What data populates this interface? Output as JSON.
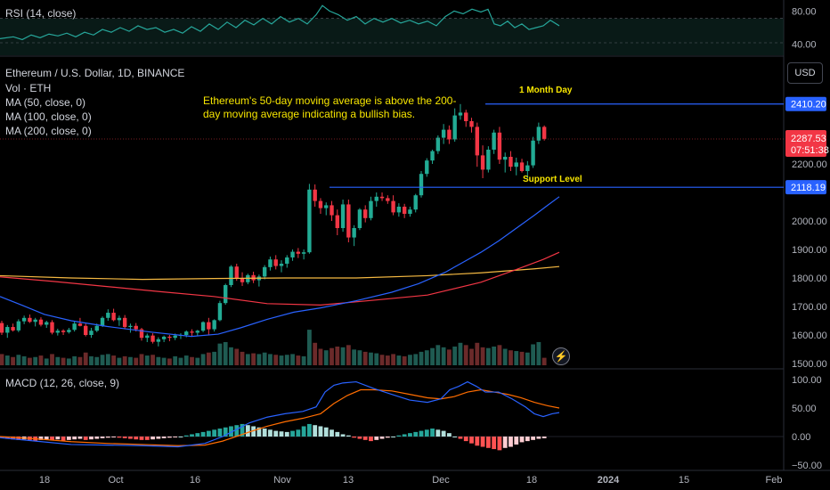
{
  "colors": {
    "background": "#000000",
    "up": "#26a69a",
    "up_candle": "#22ab94",
    "down_candle": "#f23645",
    "up_volume": "#1f5b52",
    "down_volume": "#6b2a2a",
    "rsi": "#26a69a",
    "ma50": "#2962ff",
    "ma100": "#f23645",
    "ma200": "#f5b942",
    "macd": "#2962ff",
    "signal": "#ff6d00",
    "hline": "#2962ff",
    "annotation": "#f7e600"
  },
  "header": {
    "rsi_label": "RSI (14, close)",
    "symbol": "Ethereum / U.S. Dollar, 1D, BINANCE",
    "vol_label": "Vol · ETH",
    "ma50_label": "MA (50, close, 0)",
    "ma100_label": "MA (100, close, 0)",
    "ma200_label": "MA (200, close, 0)",
    "macd_label": "MACD (12, 26, close, 9)",
    "currency": "USD"
  },
  "annotations": {
    "note": "Ethereum's 50-day moving average is above the 200-day moving average indicating a bullish bias.",
    "month_day": "1 Month Day",
    "support": "Support Level"
  },
  "price_tags": {
    "resistance": "2410.20",
    "support": "2118.19",
    "last_price": "2287.53",
    "countdown": "07:51:38"
  },
  "chart_data": {
    "type": "candlestick",
    "x_ticks": [
      "18",
      "Oct",
      "16",
      "Nov",
      "13",
      "Dec",
      "18",
      "2024",
      "15",
      "Feb"
    ],
    "price_axis": {
      "ticks": [
        1500,
        1600,
        1700,
        1800,
        1900,
        2000,
        2200
      ],
      "range": [
        1500,
        2560
      ]
    },
    "rsi_axis": {
      "ticks": [
        40,
        80
      ],
      "range": [
        30,
        90
      ]
    },
    "macd_axis": {
      "ticks": [
        "100.00",
        "50.00",
        "0.00",
        "−50.00"
      ],
      "range": [
        -50,
        110
      ]
    },
    "hlines": [
      2410.2,
      2118.19
    ],
    "candles": [
      [
        1642,
        1650,
        1600,
        1608
      ],
      [
        1608,
        1635,
        1590,
        1628
      ],
      [
        1628,
        1640,
        1612,
        1616
      ],
      [
        1616,
        1655,
        1610,
        1648
      ],
      [
        1648,
        1668,
        1638,
        1660
      ],
      [
        1660,
        1672,
        1642,
        1646
      ],
      [
        1646,
        1660,
        1630,
        1654
      ],
      [
        1654,
        1662,
        1630,
        1636
      ],
      [
        1636,
        1650,
        1625,
        1645
      ],
      [
        1645,
        1652,
        1602,
        1608
      ],
      [
        1608,
        1622,
        1598,
        1615
      ],
      [
        1615,
        1620,
        1600,
        1610
      ],
      [
        1610,
        1625,
        1605,
        1618
      ],
      [
        1618,
        1648,
        1612,
        1640
      ],
      [
        1640,
        1660,
        1630,
        1632
      ],
      [
        1632,
        1640,
        1595,
        1600
      ],
      [
        1600,
        1625,
        1590,
        1615
      ],
      [
        1615,
        1640,
        1610,
        1632
      ],
      [
        1632,
        1665,
        1628,
        1660
      ],
      [
        1660,
        1690,
        1650,
        1678
      ],
      [
        1678,
        1692,
        1648,
        1652
      ],
      [
        1652,
        1668,
        1632,
        1660
      ],
      [
        1660,
        1670,
        1620,
        1628
      ],
      [
        1628,
        1640,
        1608,
        1632
      ],
      [
        1632,
        1642,
        1612,
        1620
      ],
      [
        1620,
        1625,
        1580,
        1590
      ],
      [
        1590,
        1605,
        1575,
        1598
      ],
      [
        1598,
        1606,
        1570,
        1576
      ],
      [
        1576,
        1592,
        1560,
        1585
      ],
      [
        1585,
        1598,
        1575,
        1594
      ],
      [
        1594,
        1600,
        1578,
        1590
      ],
      [
        1590,
        1605,
        1582,
        1598
      ],
      [
        1598,
        1606,
        1586,
        1600
      ],
      [
        1600,
        1616,
        1592,
        1612
      ],
      [
        1612,
        1620,
        1595,
        1608
      ],
      [
        1608,
        1618,
        1598,
        1615
      ],
      [
        1615,
        1648,
        1610,
        1645
      ],
      [
        1645,
        1660,
        1600,
        1620
      ],
      [
        1620,
        1655,
        1612,
        1652
      ],
      [
        1652,
        1720,
        1648,
        1712
      ],
      [
        1712,
        1780,
        1706,
        1775
      ],
      [
        1775,
        1845,
        1768,
        1840
      ],
      [
        1840,
        1850,
        1790,
        1800
      ],
      [
        1800,
        1820,
        1772,
        1785
      ],
      [
        1785,
        1815,
        1778,
        1810
      ],
      [
        1810,
        1822,
        1782,
        1792
      ],
      [
        1792,
        1812,
        1770,
        1805
      ],
      [
        1805,
        1845,
        1795,
        1838
      ],
      [
        1838,
        1875,
        1826,
        1865
      ],
      [
        1865,
        1880,
        1830,
        1842
      ],
      [
        1842,
        1862,
        1820,
        1850
      ],
      [
        1850,
        1880,
        1836,
        1872
      ],
      [
        1872,
        1900,
        1860,
        1892
      ],
      [
        1892,
        1905,
        1870,
        1885
      ],
      [
        1885,
        1900,
        1865,
        1890
      ],
      [
        1890,
        2130,
        1885,
        2110
      ],
      [
        2110,
        2128,
        2050,
        2070
      ],
      [
        2070,
        2080,
        2025,
        2045
      ],
      [
        2045,
        2065,
        2020,
        2055
      ],
      [
        2055,
        2070,
        2000,
        2020
      ],
      [
        2020,
        2040,
        1950,
        1975
      ],
      [
        1975,
        2075,
        1962,
        2058
      ],
      [
        2058,
        2075,
        1925,
        1942
      ],
      [
        1942,
        1985,
        1912,
        1975
      ],
      [
        1975,
        2045,
        1968,
        2040
      ],
      [
        2040,
        2055,
        1995,
        2010
      ],
      [
        2010,
        2085,
        2002,
        2070
      ],
      [
        2070,
        2100,
        2050,
        2085
      ],
      [
        2085,
        2100,
        2070,
        2080
      ],
      [
        2080,
        2090,
        2060,
        2070
      ],
      [
        2070,
        2090,
        2020,
        2030
      ],
      [
        2030,
        2062,
        2015,
        2050
      ],
      [
        2050,
        2060,
        2010,
        2025
      ],
      [
        2025,
        2050,
        2015,
        2040
      ],
      [
        2040,
        2095,
        2030,
        2090
      ],
      [
        2090,
        2175,
        2082,
        2165
      ],
      [
        2165,
        2220,
        2155,
        2212
      ],
      [
        2212,
        2250,
        2200,
        2245
      ],
      [
        2245,
        2300,
        2235,
        2292
      ],
      [
        2292,
        2340,
        2270,
        2320
      ],
      [
        2320,
        2335,
        2270,
        2286
      ],
      [
        2286,
        2395,
        2278,
        2370
      ],
      [
        2370,
        2410,
        2355,
        2380
      ],
      [
        2380,
        2390,
        2330,
        2350
      ],
      [
        2350,
        2362,
        2310,
        2330
      ],
      [
        2330,
        2345,
        2190,
        2230
      ],
      [
        2230,
        2265,
        2150,
        2180
      ],
      [
        2180,
        2262,
        2170,
        2250
      ],
      [
        2250,
        2320,
        2235,
        2310
      ],
      [
        2310,
        2330,
        2200,
        2215
      ],
      [
        2215,
        2240,
        2170,
        2225
      ],
      [
        2225,
        2245,
        2175,
        2190
      ],
      [
        2190,
        2222,
        2160,
        2205
      ],
      [
        2205,
        2218,
        2170,
        2175
      ],
      [
        2175,
        2210,
        2150,
        2195
      ],
      [
        2195,
        2295,
        2186,
        2282
      ],
      [
        2282,
        2345,
        2270,
        2330
      ],
      [
        2330,
        2335,
        2282,
        2288
      ]
    ],
    "volumes": [
      30,
      26,
      22,
      28,
      24,
      20,
      22,
      26,
      18,
      30,
      22,
      20,
      18,
      24,
      22,
      34,
      24,
      22,
      28,
      30,
      26,
      20,
      24,
      22,
      20,
      30,
      26,
      28,
      22,
      20,
      18,
      24,
      20,
      26,
      22,
      20,
      30,
      34,
      36,
      58,
      62,
      48,
      44,
      36,
      30,
      32,
      30,
      34,
      30,
      28,
      26,
      28,
      30,
      26,
      24,
      95,
      60,
      44,
      40,
      46,
      50,
      48,
      54,
      42,
      40,
      36,
      34,
      32,
      28,
      26,
      30,
      26,
      24,
      28,
      30,
      36,
      40,
      46,
      54,
      48,
      42,
      50,
      60,
      54,
      44,
      60,
      48,
      46,
      50,
      54,
      44,
      40,
      38,
      36,
      34,
      56,
      62,
      20
    ],
    "ma50": [
      [
        0,
        1735
      ],
      [
        25,
        1704
      ],
      [
        50,
        1672
      ],
      [
        80,
        1650
      ],
      [
        120,
        1630
      ],
      [
        170,
        1610
      ],
      [
        215,
        1595
      ],
      [
        245,
        1603
      ],
      [
        270,
        1625
      ],
      [
        300,
        1655
      ],
      [
        330,
        1680
      ],
      [
        360,
        1695
      ],
      [
        400,
        1720
      ],
      [
        440,
        1750
      ],
      [
        470,
        1780
      ],
      [
        500,
        1820
      ],
      [
        520,
        1855
      ],
      [
        540,
        1890
      ],
      [
        560,
        1930
      ],
      [
        580,
        1975
      ],
      [
        600,
        2020
      ],
      [
        615,
        2055
      ],
      [
        628,
        2085
      ]
    ],
    "ma100": [
      [
        0,
        1804
      ],
      [
        60,
        1788
      ],
      [
        120,
        1770
      ],
      [
        180,
        1752
      ],
      [
        240,
        1735
      ],
      [
        300,
        1710
      ],
      [
        360,
        1705
      ],
      [
        420,
        1722
      ],
      [
        480,
        1740
      ],
      [
        540,
        1785
      ],
      [
        580,
        1830
      ],
      [
        610,
        1865
      ],
      [
        628,
        1890
      ]
    ],
    "ma200": [
      [
        0,
        1808
      ],
      [
        80,
        1800
      ],
      [
        160,
        1795
      ],
      [
        240,
        1798
      ],
      [
        320,
        1800
      ],
      [
        400,
        1800
      ],
      [
        480,
        1808
      ],
      [
        540,
        1818
      ],
      [
        600,
        1832
      ],
      [
        628,
        1840
      ]
    ],
    "rsi": [
      [
        0,
        48
      ],
      [
        15,
        50
      ],
      [
        25,
        47
      ],
      [
        35,
        52
      ],
      [
        45,
        49
      ],
      [
        55,
        53
      ],
      [
        65,
        51
      ],
      [
        75,
        54
      ],
      [
        85,
        50
      ],
      [
        95,
        55
      ],
      [
        105,
        52
      ],
      [
        115,
        58
      ],
      [
        125,
        55
      ],
      [
        135,
        60
      ],
      [
        145,
        56
      ],
      [
        155,
        62
      ],
      [
        165,
        58
      ],
      [
        175,
        60
      ],
      [
        185,
        55
      ],
      [
        195,
        58
      ],
      [
        205,
        54
      ],
      [
        215,
        61
      ],
      [
        225,
        56
      ],
      [
        235,
        64
      ],
      [
        245,
        58
      ],
      [
        255,
        66
      ],
      [
        265,
        60
      ],
      [
        275,
        68
      ],
      [
        285,
        63
      ],
      [
        295,
        70
      ],
      [
        305,
        64
      ],
      [
        315,
        72
      ],
      [
        325,
        66
      ],
      [
        335,
        70
      ],
      [
        345,
        64
      ],
      [
        355,
        74
      ],
      [
        362,
        84
      ],
      [
        370,
        78
      ],
      [
        380,
        74
      ],
      [
        390,
        68
      ],
      [
        400,
        72
      ],
      [
        410,
        64
      ],
      [
        420,
        70
      ],
      [
        430,
        66
      ],
      [
        440,
        70
      ],
      [
        450,
        65
      ],
      [
        460,
        68
      ],
      [
        470,
        64
      ],
      [
        480,
        67
      ],
      [
        490,
        62
      ],
      [
        500,
        72
      ],
      [
        510,
        78
      ],
      [
        520,
        75
      ],
      [
        530,
        80
      ],
      [
        540,
        77
      ],
      [
        548,
        80
      ],
      [
        555,
        64
      ],
      [
        562,
        62
      ],
      [
        570,
        67
      ],
      [
        578,
        60
      ],
      [
        586,
        64
      ],
      [
        594,
        58
      ],
      [
        602,
        60
      ],
      [
        610,
        62
      ],
      [
        618,
        68
      ],
      [
        628,
        62
      ]
    ],
    "macd": [
      [
        0,
        -2
      ],
      [
        40,
        -8
      ],
      [
        80,
        -14
      ],
      [
        120,
        -15
      ],
      [
        160,
        -16
      ],
      [
        200,
        -18
      ],
      [
        230,
        -12
      ],
      [
        250,
        0
      ],
      [
        265,
        12
      ],
      [
        280,
        24
      ],
      [
        300,
        34
      ],
      [
        320,
        40
      ],
      [
        340,
        44
      ],
      [
        355,
        52
      ],
      [
        365,
        78
      ],
      [
        375,
        90
      ],
      [
        385,
        94
      ],
      [
        400,
        96
      ],
      [
        420,
        84
      ],
      [
        440,
        74
      ],
      [
        460,
        64
      ],
      [
        480,
        60
      ],
      [
        495,
        66
      ],
      [
        505,
        82
      ],
      [
        515,
        88
      ],
      [
        525,
        96
      ],
      [
        535,
        88
      ],
      [
        545,
        78
      ],
      [
        560,
        78
      ],
      [
        575,
        66
      ],
      [
        590,
        52
      ],
      [
        600,
        40
      ],
      [
        610,
        35
      ],
      [
        620,
        40
      ],
      [
        628,
        42
      ]
    ],
    "signal": [
      [
        0,
        0
      ],
      [
        40,
        -4
      ],
      [
        80,
        -9
      ],
      [
        120,
        -12
      ],
      [
        160,
        -14
      ],
      [
        200,
        -16
      ],
      [
        230,
        -15
      ],
      [
        250,
        -8
      ],
      [
        265,
        0
      ],
      [
        280,
        8
      ],
      [
        300,
        18
      ],
      [
        320,
        26
      ],
      [
        340,
        32
      ],
      [
        360,
        40
      ],
      [
        375,
        58
      ],
      [
        390,
        72
      ],
      [
        405,
        82
      ],
      [
        420,
        82
      ],
      [
        440,
        80
      ],
      [
        460,
        74
      ],
      [
        480,
        68
      ],
      [
        495,
        66
      ],
      [
        510,
        70
      ],
      [
        525,
        78
      ],
      [
        540,
        82
      ],
      [
        555,
        78
      ],
      [
        570,
        74
      ],
      [
        585,
        68
      ],
      [
        600,
        60
      ],
      [
        615,
        54
      ],
      [
        628,
        50
      ]
    ],
    "hist": [
      -2,
      -4,
      -5,
      -6,
      -5,
      -6,
      -7,
      -6,
      -5,
      -6,
      -5,
      -7,
      -6,
      -5,
      -4,
      -6,
      -5,
      -4,
      -3,
      -2,
      -1,
      -2,
      -3,
      -4,
      -5,
      -6,
      -6,
      -5,
      -4,
      -3,
      -2,
      -1,
      0,
      2,
      4,
      6,
      8,
      10,
      12,
      14,
      16,
      18,
      20,
      22,
      20,
      18,
      16,
      14,
      12,
      10,
      9,
      8,
      10,
      12,
      18,
      22,
      20,
      18,
      16,
      12,
      8,
      4,
      2,
      -2,
      -4,
      -6,
      -8,
      -6,
      -4,
      -2,
      0,
      2,
      4,
      6,
      8,
      10,
      12,
      14,
      12,
      10,
      6,
      0,
      -4,
      -8,
      -12,
      -16,
      -18,
      -20,
      -22,
      -24,
      -20,
      -18,
      -14,
      -10,
      -8,
      -6,
      -4,
      -3
    ]
  }
}
